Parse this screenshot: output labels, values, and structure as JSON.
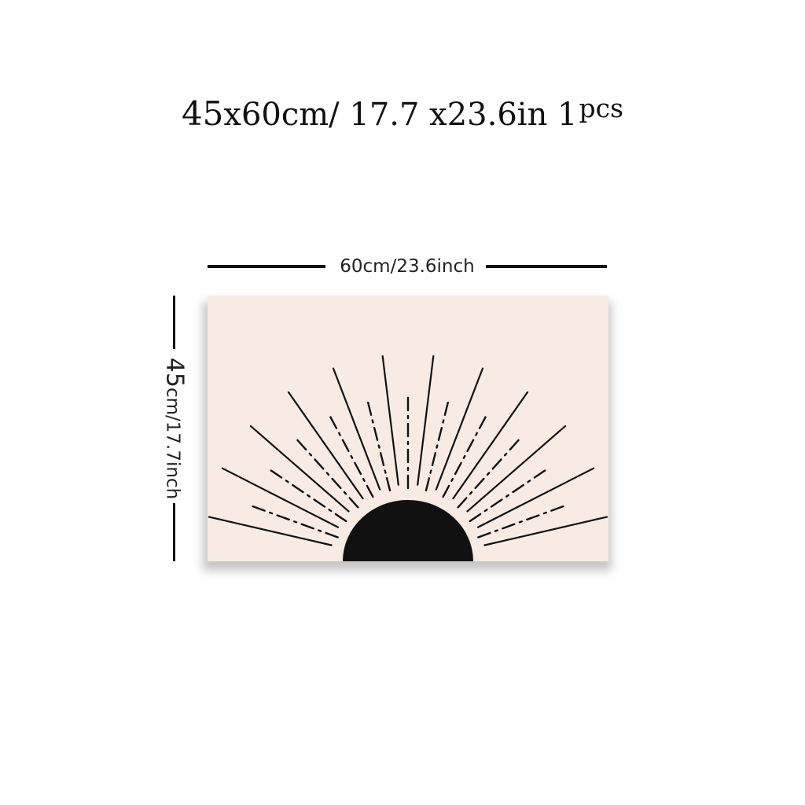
{
  "title": {
    "dims": "45",
    "rest": "x60cm/ 17.7 x23.6in 1",
    "pcs": "pcs"
  },
  "width_label": "60cm/23.6inch",
  "height_label": {
    "big": "45",
    "rest": "cm/17.7inch"
  },
  "colors": {
    "canvas": "#f7ebe3",
    "ink": "#111111"
  },
  "artwork": {
    "subject": "half-sun-with-rays",
    "solid_rays": 12,
    "dashed_rays": 11
  }
}
